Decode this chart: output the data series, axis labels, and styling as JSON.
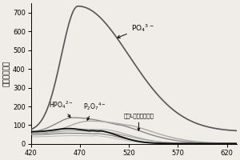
{
  "ylabel": "相对荧光强度",
  "xlim": [
    420,
    630
  ],
  "ylim": [
    0,
    750
  ],
  "xticks": [
    420,
    470,
    520,
    570,
    620
  ],
  "yticks": [
    0,
    100,
    200,
    300,
    400,
    500,
    600,
    700
  ],
  "po4_label": "PO$_4$$^{3-}$",
  "hpo4_label": "HPO$_4$$^{2-}$",
  "p2o7_label": "P$_2$O$_7$$^{4-}$",
  "probe_label": "探针L和其它阴离子",
  "background_color": "#f0ede8",
  "po4_color": "#555555",
  "hpo4_color": "#888888",
  "p2o7_color": "#aaaaaa",
  "probe_color": "#111111",
  "other_colors": [
    "#999999",
    "#bbbbbb",
    "#cccccc",
    "#777777",
    "#555555",
    "#aaaaaa"
  ]
}
